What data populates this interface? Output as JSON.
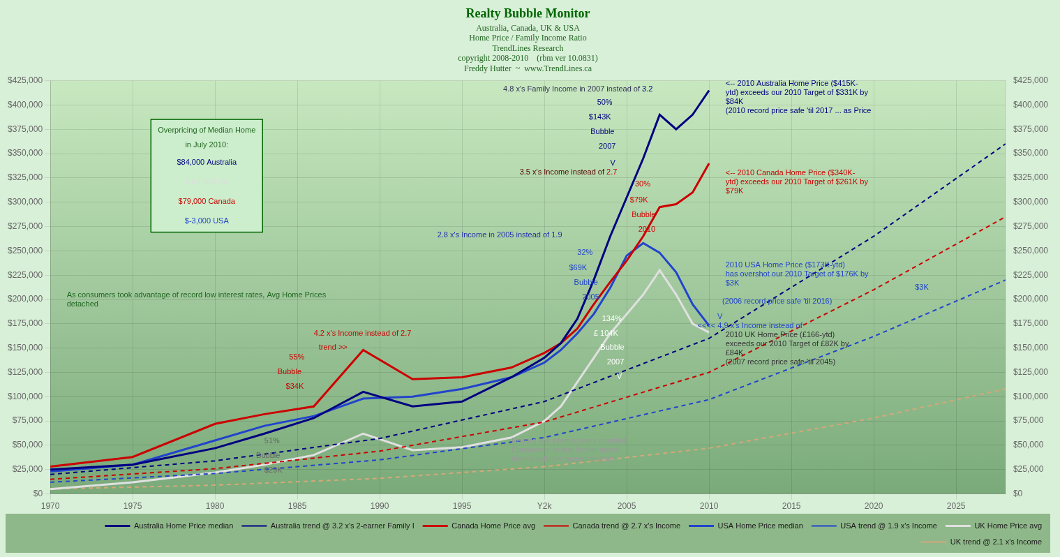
{
  "chart_data": {
    "type": "line",
    "title": "Realty Bubble Monitor",
    "subtitle": [
      "Australia, Canada, UK & USA",
      "Home Price / Family Income Ratio",
      "TrendLines Research",
      "copyright 2008-2010    (rbm ver 10.0831)",
      "Freddy Hutter  ~  www.TrendLines.ca"
    ],
    "xlim": [
      1970,
      2028
    ],
    "xticks": [
      1970,
      1975,
      1980,
      1985,
      1990,
      1995,
      {
        "value": 2000,
        "label": "Y2k"
      },
      2005,
      2010,
      2015,
      2020,
      2025
    ],
    "ylim": [
      0,
      425000
    ],
    "yticks": [
      {
        "value": 0,
        "label": "$0"
      },
      {
        "value": 25000,
        "label": "$25,000"
      },
      {
        "value": 50000,
        "label": "$50,000"
      },
      {
        "value": 75000,
        "label": "$75,000"
      },
      {
        "value": 100000,
        "label": "$100,000"
      },
      {
        "value": 125000,
        "label": "$125,000"
      },
      {
        "value": 150000,
        "label": "$150,000"
      },
      {
        "value": 175000,
        "label": "$175,000"
      },
      {
        "value": 200000,
        "label": "$200,000"
      },
      {
        "value": 225000,
        "label": "$225,000"
      },
      {
        "value": 250000,
        "label": "$250,000"
      },
      {
        "value": 275000,
        "label": "$275,000"
      },
      {
        "value": 300000,
        "label": "$300,000"
      },
      {
        "value": 325000,
        "label": "$325,000"
      },
      {
        "value": 350000,
        "label": "$350,000"
      },
      {
        "value": 375000,
        "label": "$375,000"
      },
      {
        "value": 400000,
        "label": "$400,000"
      },
      {
        "value": 425000,
        "label": "$425,000"
      }
    ],
    "y2lim": [
      0,
      425000
    ],
    "y2ticks": [
      {
        "value": 0,
        "label": "$0"
      },
      {
        "value": 25000,
        "label": "$25,000"
      },
      {
        "value": 50000,
        "label": "$50,000"
      },
      {
        "value": 75000,
        "label": "$75,000"
      },
      {
        "value": 100000,
        "label": "$100,000"
      },
      {
        "value": 125000,
        "label": "$125,000"
      },
      {
        "value": 150000,
        "label": "$150,000"
      },
      {
        "value": 175000,
        "label": "$175,000"
      },
      {
        "value": 200000,
        "label": "$200,000"
      },
      {
        "value": 225000,
        "label": "$225,000"
      },
      {
        "value": 250000,
        "label": "$250,000"
      },
      {
        "value": 275000,
        "label": "$275,000"
      },
      {
        "value": 300000,
        "label": "$300,000"
      },
      {
        "value": 325000,
        "label": "$325,000"
      },
      {
        "value": 350000,
        "label": "$350,000"
      },
      {
        "value": 375000,
        "label": "$375,000"
      },
      {
        "value": 400000,
        "label": "$400,000"
      },
      {
        "value": 425000,
        "label": "$425,000"
      }
    ],
    "grid": true,
    "legend": "lower right",
    "marker": "none",
    "series": [
      {
        "name": "Australia Home Price median",
        "color": "#000080",
        "line_style": "solid",
        "x": [
          1970,
          1975,
          1980,
          1983,
          1986,
          1989,
          1992,
          1995,
          1998,
          2000,
          2001,
          2002,
          2003,
          2004,
          2005,
          2006,
          2007,
          2008,
          2009,
          2010
        ],
        "values": [
          25000,
          30000,
          47000,
          62000,
          78000,
          105000,
          90000,
          95000,
          120000,
          140000,
          155000,
          180000,
          220000,
          265000,
          305000,
          345000,
          390000,
          375000,
          390000,
          415000
        ]
      },
      {
        "name": "Australia trend @ 3.2 x's 2-earner Family I",
        "color": "#000080",
        "line_style": "dashed",
        "x": [
          1970,
          1980,
          1990,
          2000,
          2010,
          2020,
          2028
        ],
        "values": [
          20000,
          34000,
          57000,
          95000,
          160000,
          265000,
          360000
        ]
      },
      {
        "name": "Canada Home Price avg",
        "color": "#cc0000",
        "line_style": "solid",
        "x": [
          1970,
          1975,
          1980,
          1983,
          1986,
          1989,
          1992,
          1995,
          1998,
          2000,
          2001,
          2002,
          2003,
          2004,
          2005,
          2006,
          2007,
          2008,
          2009,
          2010
        ],
        "values": [
          28000,
          38000,
          72000,
          82000,
          90000,
          148000,
          118000,
          120000,
          130000,
          145000,
          155000,
          170000,
          195000,
          218000,
          240000,
          265000,
          295000,
          298000,
          310000,
          340000
        ]
      },
      {
        "name": "Canada trend @ 2.7 x's Income",
        "color": "#cc0000",
        "line_style": "dashed",
        "x": [
          1970,
          1980,
          1990,
          2000,
          2010,
          2020,
          2028
        ],
        "values": [
          15000,
          26000,
          44000,
          74000,
          125000,
          210000,
          285000
        ]
      },
      {
        "name": "USA Home Price median",
        "color": "#2244cc",
        "line_style": "solid",
        "x": [
          1970,
          1975,
          1980,
          1983,
          1986,
          1989,
          1992,
          1995,
          1998,
          2000,
          2001,
          2002,
          2003,
          2004,
          2005,
          2006,
          2007,
          2008,
          2009,
          2010
        ],
        "values": [
          23000,
          30000,
          55000,
          70000,
          80000,
          98000,
          100000,
          108000,
          120000,
          135000,
          148000,
          165000,
          185000,
          212000,
          245000,
          258000,
          248000,
          228000,
          195000,
          173000
        ]
      },
      {
        "name": "USA trend @ 1.9 x's Income",
        "color": "#2244cc",
        "line_style": "dashed",
        "x": [
          1970,
          1980,
          1990,
          2000,
          2010,
          2020,
          2028
        ],
        "values": [
          12000,
          21000,
          35000,
          58000,
          97000,
          162000,
          220000
        ]
      },
      {
        "name": "UK Home Price avg",
        "color": "#e0e0e0",
        "line_style": "solid",
        "x": [
          1970,
          1975,
          1980,
          1983,
          1986,
          1989,
          1992,
          1995,
          1998,
          2000,
          2001,
          2002,
          2003,
          2004,
          2005,
          2006,
          2007,
          2008,
          2009,
          2010
        ],
        "values": [
          5000,
          12000,
          22000,
          30000,
          40000,
          62000,
          45000,
          48000,
          58000,
          75000,
          90000,
          115000,
          140000,
          165000,
          185000,
          205000,
          230000,
          205000,
          175000,
          166000
        ]
      },
      {
        "name": "UK trend @ 2.1 x's Income",
        "color": "#d4a878",
        "line_style": "dashed",
        "x": [
          1970,
          1980,
          1990,
          2000,
          2010,
          2020,
          2028
        ],
        "values": [
          5000,
          9000,
          16000,
          28000,
          47000,
          78000,
          108000
        ]
      }
    ],
    "annotations": [
      {
        "x": 1979.5,
        "y": 378000,
        "align": "center",
        "runs": [
          {
            "text": "Overpricing of Median Home",
            "color": "#226622"
          }
        ]
      },
      {
        "x": 1979.5,
        "y": 363000,
        "align": "center",
        "runs": [
          {
            "text": "in July 2010:",
            "color": "#226622"
          }
        ]
      },
      {
        "x": 1979.5,
        "y": 345000,
        "align": "center",
        "runs": [
          {
            "text": "$84,000 Australia",
            "color": "#000080"
          }
        ]
      },
      {
        "x": 1979.5,
        "y": 325000,
        "align": "center",
        "runs": [
          {
            "text": "£ 84,000 UK",
            "color": "#dddddd"
          }
        ]
      },
      {
        "x": 1979.5,
        "y": 305000,
        "align": "center",
        "runs": [
          {
            "text": "$79,000 Canada",
            "color": "#cc0000"
          }
        ]
      },
      {
        "x": 1979.5,
        "y": 285000,
        "align": "center",
        "runs": [
          {
            "text": "$-3,000 USA",
            "color": "#2244cc"
          }
        ]
      },
      {
        "x": 1971,
        "y": 202000,
        "runs": [
          {
            "text": "As consumers took advantage of record low interest rates, Avg Home Prices\ndetached",
            "color": "#226622"
          }
        ]
      },
      {
        "x": 1998,
        "y": 52000,
        "runs": [
          {
            "text": "Record low interest rates enabled\nConsumers to buy higher priced\nhomes with the same monthly",
            "color": "#999999"
          }
        ]
      },
      {
        "x": 1997.5,
        "y": 414000,
        "runs": [
          {
            "text": "4.8 x's Family Income in 2007 instead of ",
            "color": "#333355"
          },
          {
            "text": "3.2",
            "color": "#000080"
          }
        ]
      },
      {
        "x": 2003.2,
        "y": 400000,
        "runs": [
          {
            "text": "50%",
            "color": "#000080"
          }
        ]
      },
      {
        "x": 2002.7,
        "y": 385000,
        "runs": [
          {
            "text": "$143K",
            "color": "#000080"
          }
        ]
      },
      {
        "x": 2002.8,
        "y": 370000,
        "runs": [
          {
            "text": "Bubble",
            "color": "#000080"
          }
        ]
      },
      {
        "x": 2003.3,
        "y": 355000,
        "runs": [
          {
            "text": "2007",
            "color": "#000080"
          }
        ]
      },
      {
        "x": 2004.0,
        "y": 338000,
        "runs": [
          {
            "text": "V",
            "color": "#000080"
          }
        ]
      },
      {
        "x": 2011.0,
        "y": 420000,
        "runs": [
          {
            "text": "<-- 2010 Australia Home Price ($415K-\nytd) exceeds our 2010 Target of $331K by\n$84K\n(2010 record price safe 'til 2017 ... as Price",
            "color": "#000080"
          }
        ]
      },
      {
        "x": 1998.5,
        "y": 330000,
        "runs": [
          {
            "text": "3.5 x's Income instead of ",
            "color": "#550000"
          },
          {
            "text": "2.7",
            "color": "#cc0000"
          }
        ]
      },
      {
        "x": 2011.0,
        "y": 328000,
        "runs": [
          {
            "text": "<-- 2010 Canada Home Price ($340K-\nytd) exceeds our 2010 Target of $261K by\n$79K",
            "color": "#cc0000"
          }
        ]
      },
      {
        "x": 2005.5,
        "y": 316000,
        "runs": [
          {
            "text": "30%",
            "color": "#cc0000"
          }
        ]
      },
      {
        "x": 2005.2,
        "y": 300000,
        "runs": [
          {
            "text": "$79K",
            "color": "#cc0000"
          }
        ]
      },
      {
        "x": 2005.3,
        "y": 285000,
        "runs": [
          {
            "text": "Bubble",
            "color": "#cc0000"
          }
        ]
      },
      {
        "x": 2005.7,
        "y": 270000,
        "runs": [
          {
            "text": "2010",
            "color": "#cc0000"
          }
        ]
      },
      {
        "x": 1993.5,
        "y": 264000,
        "runs": [
          {
            "text": "2.8 x's Income in 2005 instead of 1.9",
            "color": "#2233aa"
          }
        ]
      },
      {
        "x": 2002.0,
        "y": 246000,
        "runs": [
          {
            "text": "32%",
            "color": "#2244cc"
          }
        ]
      },
      {
        "x": 2001.5,
        "y": 230000,
        "runs": [
          {
            "text": "$69K",
            "color": "#2244cc"
          }
        ]
      },
      {
        "x": 2001.8,
        "y": 215000,
        "runs": [
          {
            "text": "Bubble",
            "color": "#2244cc"
          }
        ]
      },
      {
        "x": 2002.3,
        "y": 200000,
        "runs": [
          {
            "text": "2005",
            "color": "#2244cc"
          }
        ]
      },
      {
        "x": 2011.0,
        "y": 233000,
        "runs": [
          {
            "text": "2010 USA Home Price ($173K-ytd)\nhas overshot our 2010 Target of $176K by\n$3K",
            "color": "#2244cc"
          }
        ]
      },
      {
        "x": 2022.5,
        "y": 210000,
        "runs": [
          {
            "text": "$3K",
            "color": "#2244cc"
          }
        ]
      },
      {
        "x": 2010.8,
        "y": 196000,
        "runs": [
          {
            "text": "(2006 record price safe 'til 2016)",
            "color": "#2244cc"
          }
        ]
      },
      {
        "x": 2010.5,
        "y": 180000,
        "runs": [
          {
            "text": "V",
            "color": "#2244cc"
          }
        ]
      },
      {
        "x": 2009.3,
        "y": 185000,
        "runs": [
          {
            "text": "<<<< 4.9 x's Income instead of",
            "color": "#2244cc"
          }
        ]
      },
      {
        "x": 2011.0,
        "y": 173000,
        "runs": [
          {
            "text": "2010 UK Home Price (£166-ytd)\nexceeds our 2010 Target of £82K by\n£84K\n(2007 record price safe 'til 2045)",
            "color": "#333333"
          }
        ]
      },
      {
        "x": 2003.5,
        "y": 178000,
        "runs": [
          {
            "text": "134%",
            "color": "#ffffff"
          }
        ]
      },
      {
        "x": 2003.0,
        "y": 163000,
        "runs": [
          {
            "text": "£ 104K",
            "color": "#ffffff"
          }
        ]
      },
      {
        "x": 2003.4,
        "y": 148000,
        "runs": [
          {
            "text": "Bubble",
            "color": "#ffffff"
          }
        ]
      },
      {
        "x": 2003.8,
        "y": 133000,
        "runs": [
          {
            "text": "2007",
            "color": "#ffffff"
          }
        ]
      },
      {
        "x": 2004.4,
        "y": 118000,
        "runs": [
          {
            "text": "V",
            "color": "#ffffff"
          }
        ]
      },
      {
        "x": 1986.0,
        "y": 163000,
        "runs": [
          {
            "text": "4.2 x's Income instead of 2.7",
            "color": "#cc0000"
          }
        ]
      },
      {
        "x": 1986.3,
        "y": 148000,
        "runs": [
          {
            "text": "trend >>",
            "color": "#cc0000"
          }
        ]
      },
      {
        "x": 1984.5,
        "y": 138000,
        "runs": [
          {
            "text": "55%",
            "color": "#cc0000"
          }
        ]
      },
      {
        "x": 1983.8,
        "y": 123000,
        "runs": [
          {
            "text": "Bubble",
            "color": "#cc0000"
          }
        ]
      },
      {
        "x": 1984.3,
        "y": 108000,
        "runs": [
          {
            "text": "$34K",
            "color": "#cc0000"
          }
        ]
      },
      {
        "x": 1983.0,
        "y": 52000,
        "runs": [
          {
            "text": "51%",
            "color": "#666666"
          }
        ]
      },
      {
        "x": 1982.5,
        "y": 37000,
        "runs": [
          {
            "text": "Bubble",
            "color": "#666666"
          }
        ]
      },
      {
        "x": 1983.0,
        "y": 22000,
        "runs": [
          {
            "text": "$29K",
            "color": "#666666"
          }
        ]
      }
    ]
  }
}
